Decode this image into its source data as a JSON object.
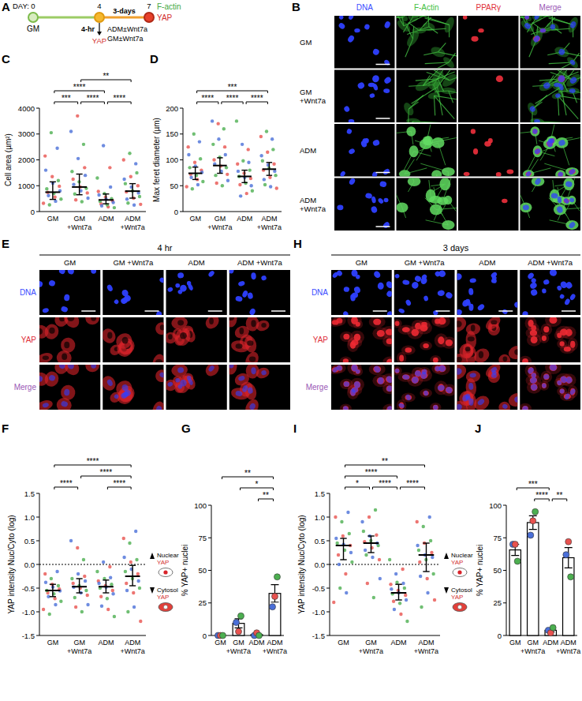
{
  "panel_letters": [
    "A",
    "B",
    "C",
    "D",
    "E",
    "F",
    "G",
    "H",
    "I",
    "J"
  ],
  "timeline": {
    "day_label": "DAY:",
    "days": [
      0,
      4,
      7
    ],
    "start_medium": "GM",
    "short_time": "4-hr",
    "short_stain": "YAP",
    "long_time": "3-days",
    "treatments": [
      "ADM±Wnt7a",
      "GM±Wnt7a"
    ],
    "end_stains": [
      "F-actin",
      "YAP"
    ]
  },
  "image_panels": [
    {
      "columns": [
        {
          "label": "DNA",
          "color": "#3b4cff"
        },
        {
          "label": "F-Actin",
          "color": "#3fbf3f"
        },
        {
          "label": "PPARγ",
          "color": "#e0303a"
        },
        {
          "label": "Merge",
          "color": "#9b59b6"
        }
      ],
      "rows": [
        "GM",
        "GM +Wnt7a",
        "ADM",
        "ADM +Wnt7a"
      ]
    },
    {
      "title": "4 hr",
      "columns": [
        "GM",
        "GM +Wnt7a",
        "ADM",
        "ADM +Wnt7a"
      ],
      "rows": [
        {
          "label": "DNA",
          "color": "#3b4cff"
        },
        {
          "label": "YAP",
          "color": "#e0303a"
        },
        {
          "label": "Merge",
          "color": "#9b59b6"
        }
      ]
    },
    {
      "title": "3 days",
      "columns": [
        "GM",
        "GM +Wnt7a",
        "ADM",
        "ADM +Wnt7a"
      ],
      "rows": [
        {
          "label": "DNA",
          "color": "#3b4cff"
        },
        {
          "label": "YAP",
          "color": "#e0303a"
        },
        {
          "label": "Merge",
          "color": "#9b59b6"
        }
      ]
    }
  ],
  "chart_data": [
    {
      "type": "strip",
      "y_label": "Cell area (µm²)",
      "categories": [
        "GM",
        "GM +Wnt7a",
        "ADM",
        "ADM +Wnt7a"
      ],
      "ylim": [
        0,
        4000
      ],
      "yticks": [
        0,
        1000,
        2000,
        3000,
        4000
      ],
      "series": [
        {
          "color": "#e8524f",
          "values": [
            [
              320,
              560,
              740,
              980,
              1350,
              2150
            ],
            [
              450,
              720,
              950,
              1250,
              1700,
              3700
            ],
            [
              180,
              300,
              420,
              560,
              780,
              1700
            ],
            [
              280,
              520,
              760,
              1000,
              1350,
              2000
            ]
          ]
        },
        {
          "color": "#4caf50",
          "values": [
            [
              260,
              480,
              700,
              880,
              1200,
              3050
            ],
            [
              380,
              680,
              900,
              1150,
              1550,
              2600
            ],
            [
              150,
              260,
              400,
              500,
              700,
              1300
            ],
            [
              330,
              580,
              800,
              1080,
              1500,
              2250
            ]
          ]
        },
        {
          "color": "#4a6fd8",
          "values": [
            [
              400,
              620,
              800,
              1100,
              1600,
              2450
            ],
            [
              520,
              800,
              1050,
              1400,
              2050,
              3100
            ],
            [
              220,
              350,
              480,
              640,
              950,
              2550
            ],
            [
              250,
              480,
              720,
              950,
              1250,
              1850
            ]
          ]
        }
      ],
      "medians": [
        750,
        950,
        450,
        790
      ],
      "q1": [
        470,
        650,
        300,
        520
      ],
      "q3": [
        1150,
        1450,
        680,
        1080
      ],
      "comparisons": [
        {
          "from": 0,
          "to": 1,
          "label": "***"
        },
        {
          "from": 0,
          "to": 2,
          "label": "****"
        },
        {
          "from": 1,
          "to": 2,
          "label": "****"
        },
        {
          "from": 2,
          "to": 3,
          "label": "****"
        },
        {
          "from": 1,
          "to": 3,
          "label": "**"
        }
      ]
    },
    {
      "type": "strip",
      "y_label": "Max feret diameter (µm)",
      "categories": [
        "GM",
        "GM +Wnt7a",
        "ADM",
        "ADM +Wnt7a"
      ],
      "ylim": [
        0,
        200
      ],
      "yticks": [
        0,
        50,
        100,
        150,
        200
      ],
      "series": [
        {
          "color": "#e8524f",
          "values": [
            [
              48,
              62,
              72,
              80,
              95,
              125
            ],
            [
              55,
              72,
              88,
              100,
              125,
              170
            ],
            [
              35,
              52,
              64,
              74,
              92,
              120
            ],
            [
              45,
              66,
              80,
              92,
              115,
              145
            ]
          ]
        },
        {
          "color": "#4caf50",
          "values": [
            [
              44,
              58,
              70,
              85,
              102,
              150
            ],
            [
              50,
              70,
              85,
              105,
              130,
              160
            ],
            [
              40,
              55,
              68,
              80,
              98,
              175
            ],
            [
              52,
              70,
              84,
              98,
              120,
              155
            ]
          ]
        },
        {
          "color": "#4a6fd8",
          "values": [
            [
              52,
              66,
              76,
              88,
              110,
              135
            ],
            [
              60,
              78,
              92,
              110,
              140,
              175
            ],
            [
              30,
              50,
              66,
              78,
              95,
              130
            ],
            [
              48,
              62,
              78,
              90,
              108,
              140
            ]
          ]
        }
      ],
      "medians": [
        74,
        89,
        68,
        82
      ],
      "q1": [
        62,
        74,
        56,
        70
      ],
      "q3": [
        86,
        104,
        80,
        95
      ],
      "comparisons": [
        {
          "from": 0,
          "to": 1,
          "label": "****"
        },
        {
          "from": 1,
          "to": 2,
          "label": "****"
        },
        {
          "from": 2,
          "to": 3,
          "label": "****"
        },
        {
          "from": 0,
          "to": 3,
          "label": "***"
        }
      ]
    },
    {
      "type": "strip",
      "y_label": "YAP intensity Nuc/Cyto (log)",
      "categories": [
        "GM",
        "GM +Wnt7a",
        "ADM",
        "ADM +Wnt7a"
      ],
      "ylim": [
        -1.5,
        1.5
      ],
      "yticks": [
        -1.5,
        {
          "value": -1,
          "label": "-1.0"
        },
        -0.5,
        {
          "value": 0,
          "label": "0.0"
        },
        0.5,
        {
          "value": 1,
          "label": "1.0"
        },
        1.5
      ],
      "reference_line": 0,
      "series": [
        {
          "color": "#e8524f",
          "values": [
            [
              -0.95,
              -0.72,
              -0.6,
              -0.52,
              -0.42,
              -0.2
            ],
            [
              -0.9,
              -0.65,
              -0.5,
              -0.4,
              -0.25,
              0.35
            ],
            [
              -0.95,
              -0.68,
              -0.55,
              -0.45,
              -0.35,
              -0.05
            ],
            [
              -1.2,
              -0.6,
              -0.4,
              -0.2,
              0.05,
              0.55
            ]
          ]
        },
        {
          "color": "#4caf50",
          "values": [
            [
              -1.05,
              -0.78,
              -0.62,
              -0.55,
              -0.45,
              -0.3
            ],
            [
              -1.0,
              -0.7,
              -0.55,
              -0.45,
              -0.3,
              0.1
            ],
            [
              -1.1,
              -0.72,
              -0.5,
              -0.42,
              -0.3,
              -0.15
            ],
            [
              -1.0,
              -0.5,
              -0.3,
              -0.15,
              0.1,
              0.45
            ]
          ]
        },
        {
          "color": "#4a6fd8",
          "values": [
            [
              -0.85,
              -0.68,
              -0.56,
              -0.48,
              -0.38,
              -0.15
            ],
            [
              -0.85,
              -0.6,
              -0.48,
              -0.35,
              -0.2,
              0.5
            ],
            [
              -0.88,
              -0.62,
              -0.48,
              -0.4,
              -0.28,
              0.05
            ],
            [
              -0.9,
              -0.55,
              -0.35,
              -0.1,
              0.15,
              0.7
            ]
          ]
        }
      ],
      "medians": [
        -0.55,
        -0.47,
        -0.47,
        -0.25
      ],
      "q1": [
        -0.68,
        -0.6,
        -0.6,
        -0.45
      ],
      "q3": [
        -0.42,
        -0.3,
        -0.33,
        -0.02
      ],
      "comparisons": [
        {
          "from": 0,
          "to": 1,
          "label": "****"
        },
        {
          "from": 2,
          "to": 3,
          "label": "****"
        },
        {
          "from": 1,
          "to": 3,
          "label": "****"
        },
        {
          "from": 0,
          "to": 3,
          "label": "****"
        }
      ],
      "annotations": [
        "Nuclear YAP",
        "Cytosol YAP"
      ]
    },
    {
      "type": "bar",
      "y_label": "% YAP+ nuclei",
      "categories": [
        "GM",
        "GM +Wnt7a",
        "ADM",
        "ADM +Wnt7a"
      ],
      "ylim": [
        0,
        100
      ],
      "yticks": [
        0,
        25,
        50,
        75,
        100
      ],
      "values": [
        0,
        9.3,
        0.7,
        32.3
      ],
      "errors": [
        0,
        3.5,
        0.7,
        6.7
      ],
      "replicates": [
        {
          "color": "#4a6fd8",
          "values": [
            0,
            10,
            0,
            22
          ]
        },
        {
          "color": "#e8524f",
          "values": [
            0,
            3,
            2,
            30
          ]
        },
        {
          "color": "#4caf50",
          "values": [
            0,
            15,
            0,
            45
          ]
        }
      ],
      "comparisons": [
        {
          "from": 2,
          "to": 3,
          "label": "**"
        },
        {
          "from": 1,
          "to": 3,
          "label": "*"
        },
        {
          "from": 0,
          "to": 3,
          "label": "**"
        }
      ]
    },
    {
      "type": "strip",
      "y_label": "YAP intensity Nuc/Cyto (log)",
      "categories": [
        "GM",
        "GM +Wnt7a",
        "ADM",
        "ADM +Wnt7a"
      ],
      "ylim": [
        -1.5,
        1.5
      ],
      "yticks": [
        -1.5,
        {
          "value": -1,
          "label": "-1.0"
        },
        -0.5,
        {
          "value": 0,
          "label": "0.0"
        },
        0.5,
        {
          "value": 1,
          "label": "1.0"
        },
        1.5
      ],
      "reference_line": 0,
      "series": [
        {
          "color": "#e8524f",
          "values": [
            [
              -0.8,
              -0.2,
              0.2,
              0.4,
              0.6,
              1.0
            ],
            [
              -0.4,
              0.1,
              0.35,
              0.48,
              0.62,
              1.0
            ],
            [
              -1.05,
              -0.78,
              -0.65,
              -0.55,
              -0.42,
              -0.1
            ],
            [
              -0.75,
              -0.3,
              0.05,
              0.25,
              0.45,
              0.9
            ]
          ]
        },
        {
          "color": "#4caf50",
          "values": [
            [
              -0.5,
              0.05,
              0.3,
              0.45,
              0.65,
              0.9
            ],
            [
              -0.7,
              0.2,
              0.4,
              0.5,
              0.7,
              1.15
            ],
            [
              -1.2,
              -0.82,
              -0.62,
              -0.5,
              -0.38,
              0.1
            ],
            [
              -0.9,
              -0.2,
              0.1,
              0.3,
              0.5,
              0.8
            ]
          ]
        },
        {
          "color": "#4a6fd8",
          "values": [
            [
              -0.6,
              0.0,
              0.25,
              0.42,
              0.55,
              1.1
            ],
            [
              -0.3,
              0.15,
              0.3,
              0.45,
              0.6,
              0.9
            ],
            [
              -0.95,
              -0.75,
              -0.6,
              -0.52,
              -0.4,
              -0.2
            ],
            [
              -0.6,
              -0.25,
              0.15,
              0.2,
              0.4,
              1.0
            ]
          ]
        }
      ],
      "medians": [
        0.4,
        0.45,
        -0.6,
        0.2
      ],
      "q1": [
        0.1,
        0.25,
        -0.75,
        -0.15
      ],
      "q3": [
        0.55,
        0.6,
        -0.42,
        0.45
      ],
      "comparisons": [
        {
          "from": 0,
          "to": 1,
          "label": "*"
        },
        {
          "from": 1,
          "to": 2,
          "label": "****"
        },
        {
          "from": 2,
          "to": 3,
          "label": "****"
        },
        {
          "from": 0,
          "to": 2,
          "label": "****"
        },
        {
          "from": 0,
          "to": 3,
          "label": "**"
        }
      ],
      "annotations": [
        "Nuclear YAP",
        "Cytosol YAP"
      ]
    },
    {
      "type": "bar",
      "y_label": "% YAP+ nuclei",
      "categories": [
        "GM",
        "GM +Wnt7a",
        "ADM",
        "ADM +Wnt7a"
      ],
      "ylim": [
        0,
        100
      ],
      "yticks": [
        0,
        25,
        50,
        75,
        100
      ],
      "values": [
        65.7,
        86.7,
        4,
        59.7
      ],
      "errors": [
        4.3,
        5.2,
        1.2,
        7.8
      ],
      "replicates": [
        {
          "color": "#4a6fd8",
          "values": [
            70,
            77,
            4,
            62
          ]
        },
        {
          "color": "#e8524f",
          "values": [
            70,
            88,
            2,
            72
          ]
        },
        {
          "color": "#4caf50",
          "values": [
            57,
            95,
            6,
            45
          ]
        }
      ],
      "comparisons": [
        {
          "from": 2,
          "to": 3,
          "label": "**"
        },
        {
          "from": 1,
          "to": 2,
          "label": "****"
        },
        {
          "from": 0,
          "to": 2,
          "label": "***"
        }
      ]
    }
  ]
}
